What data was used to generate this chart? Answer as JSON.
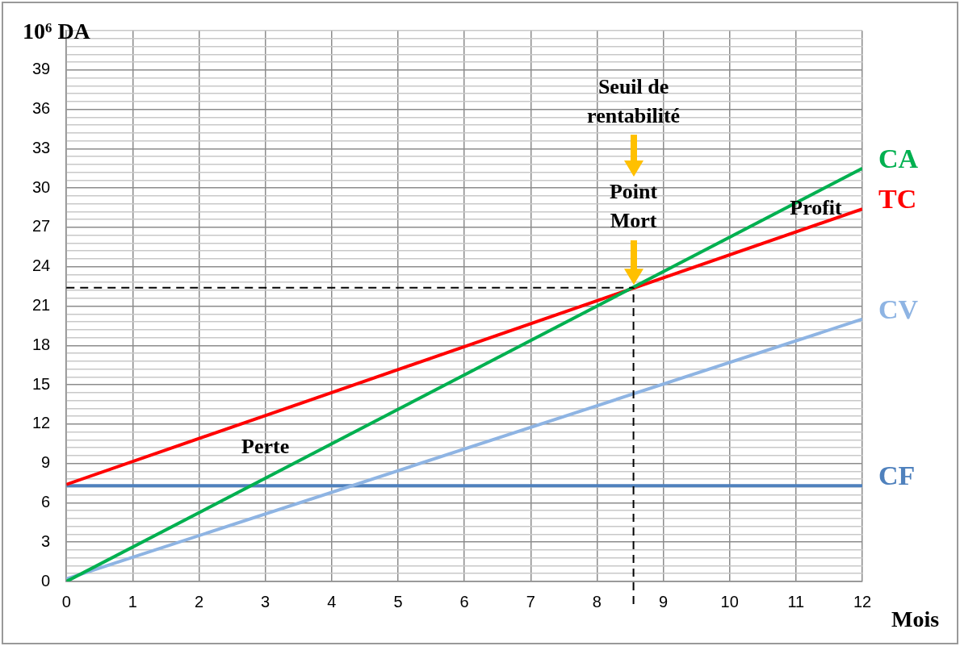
{
  "chart_data": {
    "type": "line",
    "xlabel": "Mois",
    "ylabel": "10⁶ DA",
    "x": [
      0,
      12
    ],
    "series": [
      {
        "name": "CA",
        "color": "#00b050",
        "values": [
          0,
          31.5
        ]
      },
      {
        "name": "TC",
        "color": "#ff0000",
        "values": [
          7.4,
          28.4
        ]
      },
      {
        "name": "CV",
        "color": "#8eb4e3",
        "values": [
          0.2,
          20
        ]
      },
      {
        "name": "CF",
        "color": "#4f81bd",
        "values": [
          7.3,
          7.3
        ]
      }
    ],
    "xlim": [
      0,
      12
    ],
    "xticks": [
      0,
      1,
      2,
      3,
      4,
      5,
      6,
      7,
      8,
      9,
      10,
      11,
      12
    ],
    "ylim": [
      0,
      42
    ],
    "yticks": [
      0,
      {
        "value": 0.6,
        "label": null
      },
      {
        "value": 1.2,
        "label": null
      },
      {
        "value": 1.8,
        "label": null
      },
      {
        "value": 2.4,
        "label": null
      },
      3,
      {
        "value": 3.6,
        "label": null
      },
      {
        "value": 4.2,
        "label": null
      },
      {
        "value": 4.8,
        "label": null
      },
      {
        "value": 5.4,
        "label": null
      },
      6,
      {
        "value": 6.6,
        "label": null
      },
      {
        "value": 7.2,
        "label": null
      },
      {
        "value": 7.8,
        "label": null
      },
      {
        "value": 8.4,
        "label": null
      },
      9,
      {
        "value": 9.6,
        "label": null
      },
      {
        "value": 10.2,
        "label": null
      },
      {
        "value": 10.8,
        "label": null
      },
      {
        "value": 11.4,
        "label": null
      },
      12,
      {
        "value": 12.6,
        "label": null
      },
      {
        "value": 13.2,
        "label": null
      },
      {
        "value": 13.8,
        "label": null
      },
      {
        "value": 14.4,
        "label": null
      },
      15,
      {
        "value": 15.6,
        "label": null
      },
      {
        "value": 16.2,
        "label": null
      },
      {
        "value": 16.8,
        "label": null
      },
      {
        "value": 17.4,
        "label": null
      },
      18,
      {
        "value": 18.6,
        "label": null
      },
      {
        "value": 19.2,
        "label": null
      },
      {
        "value": 19.8,
        "label": null
      },
      {
        "value": 20.4,
        "label": null
      },
      21,
      {
        "value": 21.6,
        "label": null
      },
      {
        "value": 22.2,
        "label": null
      },
      {
        "value": 22.8,
        "label": null
      },
      {
        "value": 23.4,
        "label": null
      },
      24,
      {
        "value": 24.6,
        "label": null
      },
      {
        "value": 25.2,
        "label": null
      },
      {
        "value": 25.8,
        "label": null
      },
      {
        "value": 26.4,
        "label": null
      },
      27,
      {
        "value": 27.6,
        "label": null
      },
      {
        "value": 28.2,
        "label": null
      },
      {
        "value": 28.8,
        "label": null
      },
      {
        "value": 29.4,
        "label": null
      },
      30,
      {
        "value": 30.6,
        "label": null
      },
      {
        "value": 31.2,
        "label": null
      },
      {
        "value": 31.8,
        "label": null
      },
      {
        "value": 32.4,
        "label": null
      },
      33,
      {
        "value": 33.6,
        "label": null
      },
      {
        "value": 34.2,
        "label": null
      },
      {
        "value": 34.8,
        "label": null
      },
      {
        "value": 35.4,
        "label": null
      },
      36,
      {
        "value": 36.6,
        "label": null
      },
      {
        "value": 37.2,
        "label": null
      },
      {
        "value": 37.8,
        "label": null
      },
      {
        "value": 38.4,
        "label": null
      },
      39,
      {
        "value": 39.6,
        "label": null
      },
      {
        "value": 40.2,
        "label": null
      },
      {
        "value": 40.8,
        "label": null
      },
      {
        "value": 41.4,
        "label": null
      },
      {
        "value": 42,
        "label": null
      }
    ],
    "grid": true,
    "legend": false,
    "marker": "none",
    "line_style": "solid",
    "ref_lines": [
      {
        "axis": "x",
        "value": 8.55,
        "color": "#000000",
        "line_style": "dashed"
      },
      {
        "axis": "y",
        "value": 22.4,
        "color": "#000000",
        "line_style": "dashed"
      }
    ],
    "annotations": [
      "Seuil de rentabilité",
      "Point Mort",
      "Profit",
      "Perte"
    ]
  }
}
